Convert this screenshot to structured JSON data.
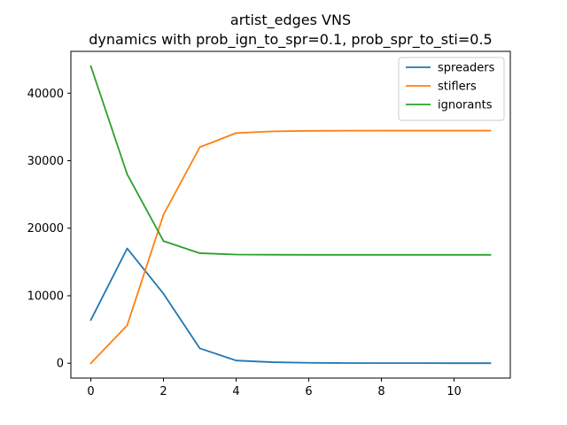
{
  "chart_data": {
    "type": "line",
    "title": "artist_edges VNS",
    "subtitle": "dynamics with prob_ign_to_spr=0.1, prob_spr_to_sti=0.5",
    "xlabel": "",
    "ylabel": "",
    "xlim": [
      -0.55,
      11.55
    ],
    "ylim": [
      -2200,
      46200
    ],
    "x_ticks": [
      0,
      2,
      4,
      6,
      8,
      10
    ],
    "y_ticks": [
      0,
      10000,
      20000,
      30000,
      40000
    ],
    "grid": false,
    "legend_position": "top-right",
    "x": [
      0,
      1,
      2,
      3,
      4,
      5,
      6,
      7,
      8,
      9,
      10,
      11
    ],
    "series": [
      {
        "name": "spreaders",
        "color": "#1f77b4",
        "values": [
          6400,
          17000,
          10300,
          2200,
          400,
          150,
          60,
          30,
          15,
          10,
          5,
          5
        ]
      },
      {
        "name": "stiflers",
        "color": "#ff7f0e",
        "values": [
          0,
          5600,
          22000,
          32000,
          34100,
          34350,
          34420,
          34440,
          34450,
          34450,
          34450,
          34450
        ]
      },
      {
        "name": "ignorants",
        "color": "#2ca02c",
        "values": [
          44000,
          28000,
          18100,
          16300,
          16100,
          16070,
          16060,
          16060,
          16060,
          16060,
          16060,
          16060
        ]
      }
    ]
  }
}
